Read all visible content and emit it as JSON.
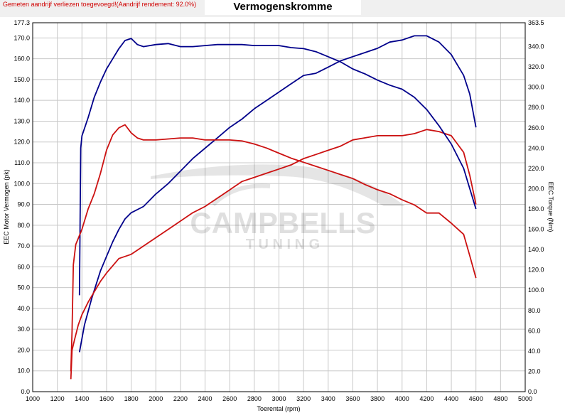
{
  "header": {
    "notice": "Gemeten aandrijf verliezen toegevoegd!(Aandrijf rendement: 92.0%)",
    "title": "Vermogenskromme"
  },
  "watermark": {
    "line1": "CAMPBELLS",
    "line2": "T U N I N G"
  },
  "colors": {
    "power_after": "#00008b",
    "power_before": "#cc1111",
    "torque_after": "#00008b",
    "torque_before": "#cc1111",
    "grid": "#c8c8c8"
  },
  "chart_data": {
    "type": "line",
    "title": "Vermogenskromme",
    "xlabel": "Toerental (rpm)",
    "ylabel_left": "EEC Motor Vermogen (pk)",
    "ylabel_right": "EEC Torque (Nm)",
    "xlim": [
      1000,
      5000
    ],
    "ylim_left": [
      0,
      177.3
    ],
    "ylim_right": [
      0,
      363.5
    ],
    "x_ticks": [
      "1000",
      "1200",
      "1400",
      "1600",
      "1800",
      "2000",
      "2200",
      "2400",
      "2600",
      "2800",
      "3000",
      "3200",
      "3400",
      "3600",
      "3800",
      "4000",
      "4200",
      "4400",
      "4600",
      "4800",
      "5000"
    ],
    "y_left_ticks": [
      "0.0",
      "10.0",
      "20.0",
      "30.0",
      "40.0",
      "50.0",
      "60.0",
      "70.0",
      "80.0",
      "90.0",
      "100.0",
      "110.0",
      "120.0",
      "130.0",
      "140.0",
      "150.0",
      "160.0",
      "170.0",
      "177.3"
    ],
    "y_right_ticks": [
      "0.0",
      "20.0",
      "40.0",
      "60.0",
      "80.0",
      "100.0",
      "120.0",
      "140.0",
      "160.0",
      "180.0",
      "200.0",
      "220.0",
      "240.0",
      "260.0",
      "280.0",
      "300.0",
      "320.0",
      "340.0",
      "363.5"
    ],
    "grid": true,
    "series": [
      {
        "axis": "left",
        "x": [
          1380,
          1420,
          1480,
          1550,
          1600,
          1650,
          1700,
          1750,
          1800,
          1900,
          2000,
          2100,
          2200,
          2300,
          2400,
          2500,
          2600,
          2700,
          2800,
          2900,
          3000,
          3100,
          3200,
          3300,
          3400,
          3500,
          3600,
          3700,
          3800,
          3900,
          4000,
          4100,
          4200,
          4300,
          4400,
          4500,
          4550,
          4600
        ],
        "y": [
          19,
          32,
          45,
          58,
          65,
          72,
          78,
          83,
          86,
          89,
          95,
          100,
          106,
          112,
          117,
          122,
          127,
          131,
          136,
          140,
          144,
          148,
          152,
          153,
          156,
          159,
          161,
          163,
          165,
          168,
          169,
          171,
          171,
          168,
          162,
          152,
          143,
          127
        ]
      },
      {
        "axis": "left",
        "x": [
          1310,
          1320,
          1340,
          1370,
          1400,
          1450,
          1500,
          1550,
          1600,
          1700,
          1800,
          1900,
          2000,
          2100,
          2200,
          2300,
          2400,
          2500,
          2600,
          2700,
          2800,
          2900,
          3000,
          3100,
          3200,
          3300,
          3400,
          3500,
          3600,
          3700,
          3800,
          3900,
          4000,
          4100,
          4200,
          4300,
          4400,
          4500,
          4550,
          4600
        ],
        "y": [
          6,
          20,
          25,
          32,
          37,
          43,
          48,
          53,
          57,
          64,
          66,
          70,
          74,
          78,
          82,
          86,
          89,
          93,
          97,
          101,
          103,
          105,
          107,
          109,
          112,
          114,
          116,
          118,
          121,
          122,
          123,
          123,
          123,
          124,
          126,
          125,
          123,
          115,
          104,
          90
        ]
      },
      {
        "axis": "right",
        "x": [
          1380,
          1390,
          1400,
          1450,
          1500,
          1550,
          1600,
          1650,
          1700,
          1750,
          1800,
          1850,
          1900,
          2000,
          2100,
          2200,
          2300,
          2400,
          2500,
          2600,
          2700,
          2800,
          2900,
          3000,
          3100,
          3200,
          3300,
          3400,
          3500,
          3600,
          3700,
          3800,
          3900,
          4000,
          4100,
          4200,
          4300,
          4400,
          4500,
          4550,
          4600
        ],
        "y": [
          95,
          240,
          252,
          270,
          290,
          305,
          318,
          328,
          338,
          346,
          348,
          342,
          340,
          342,
          343,
          340,
          340,
          341,
          342,
          342,
          342,
          341,
          341,
          341,
          339,
          338,
          335,
          330,
          325,
          318,
          313,
          307,
          302,
          298,
          290,
          278,
          262,
          244,
          220,
          200,
          180
        ]
      },
      {
        "axis": "right",
        "x": [
          1310,
          1320,
          1330,
          1350,
          1400,
          1450,
          1500,
          1550,
          1600,
          1650,
          1700,
          1750,
          1800,
          1850,
          1900,
          2000,
          2100,
          2200,
          2300,
          2400,
          2500,
          2600,
          2700,
          2800,
          2900,
          3000,
          3100,
          3200,
          3300,
          3400,
          3500,
          3600,
          3700,
          3800,
          3900,
          4000,
          4100,
          4200,
          4300,
          4400,
          4500,
          4550,
          4600
        ],
        "y": [
          20,
          60,
          125,
          145,
          160,
          180,
          195,
          215,
          238,
          253,
          260,
          263,
          255,
          250,
          248,
          248,
          249,
          250,
          250,
          248,
          248,
          248,
          247,
          244,
          240,
          235,
          230,
          226,
          222,
          218,
          214,
          210,
          204,
          199,
          195,
          189,
          184,
          176,
          176,
          166,
          155,
          134,
          112
        ]
      }
    ]
  }
}
